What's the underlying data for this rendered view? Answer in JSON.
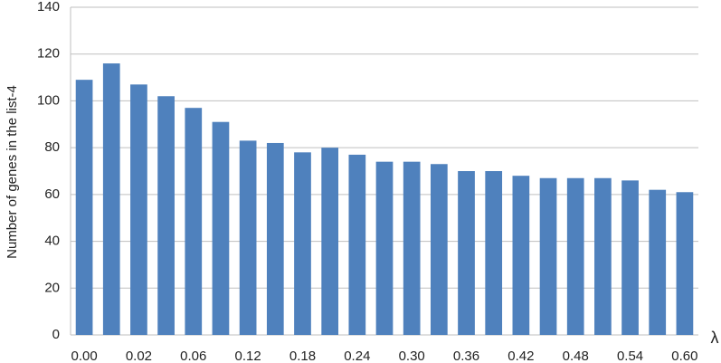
{
  "chart_data": {
    "type": "bar",
    "y_label": "Number of genes in the list-4",
    "x_label": "λ",
    "categories": [
      "0.00",
      null,
      "0.02",
      null,
      "0.06",
      null,
      "0.12",
      null,
      "0.18",
      null,
      "0.24",
      null,
      "0.30",
      null,
      "0.36",
      null,
      "0.42",
      null,
      "0.48",
      null,
      "0.54",
      null,
      "0.60"
    ],
    "values": [
      109,
      116,
      107,
      102,
      97,
      91,
      83,
      82,
      78,
      80,
      77,
      74,
      74,
      73,
      70,
      70,
      68,
      67,
      67,
      67,
      66,
      62,
      61
    ],
    "color": "#4f81bd",
    "ylim": [
      0,
      140
    ],
    "yticks": [
      0,
      20,
      40,
      60,
      80,
      100,
      120,
      140
    ],
    "grid": true
  }
}
